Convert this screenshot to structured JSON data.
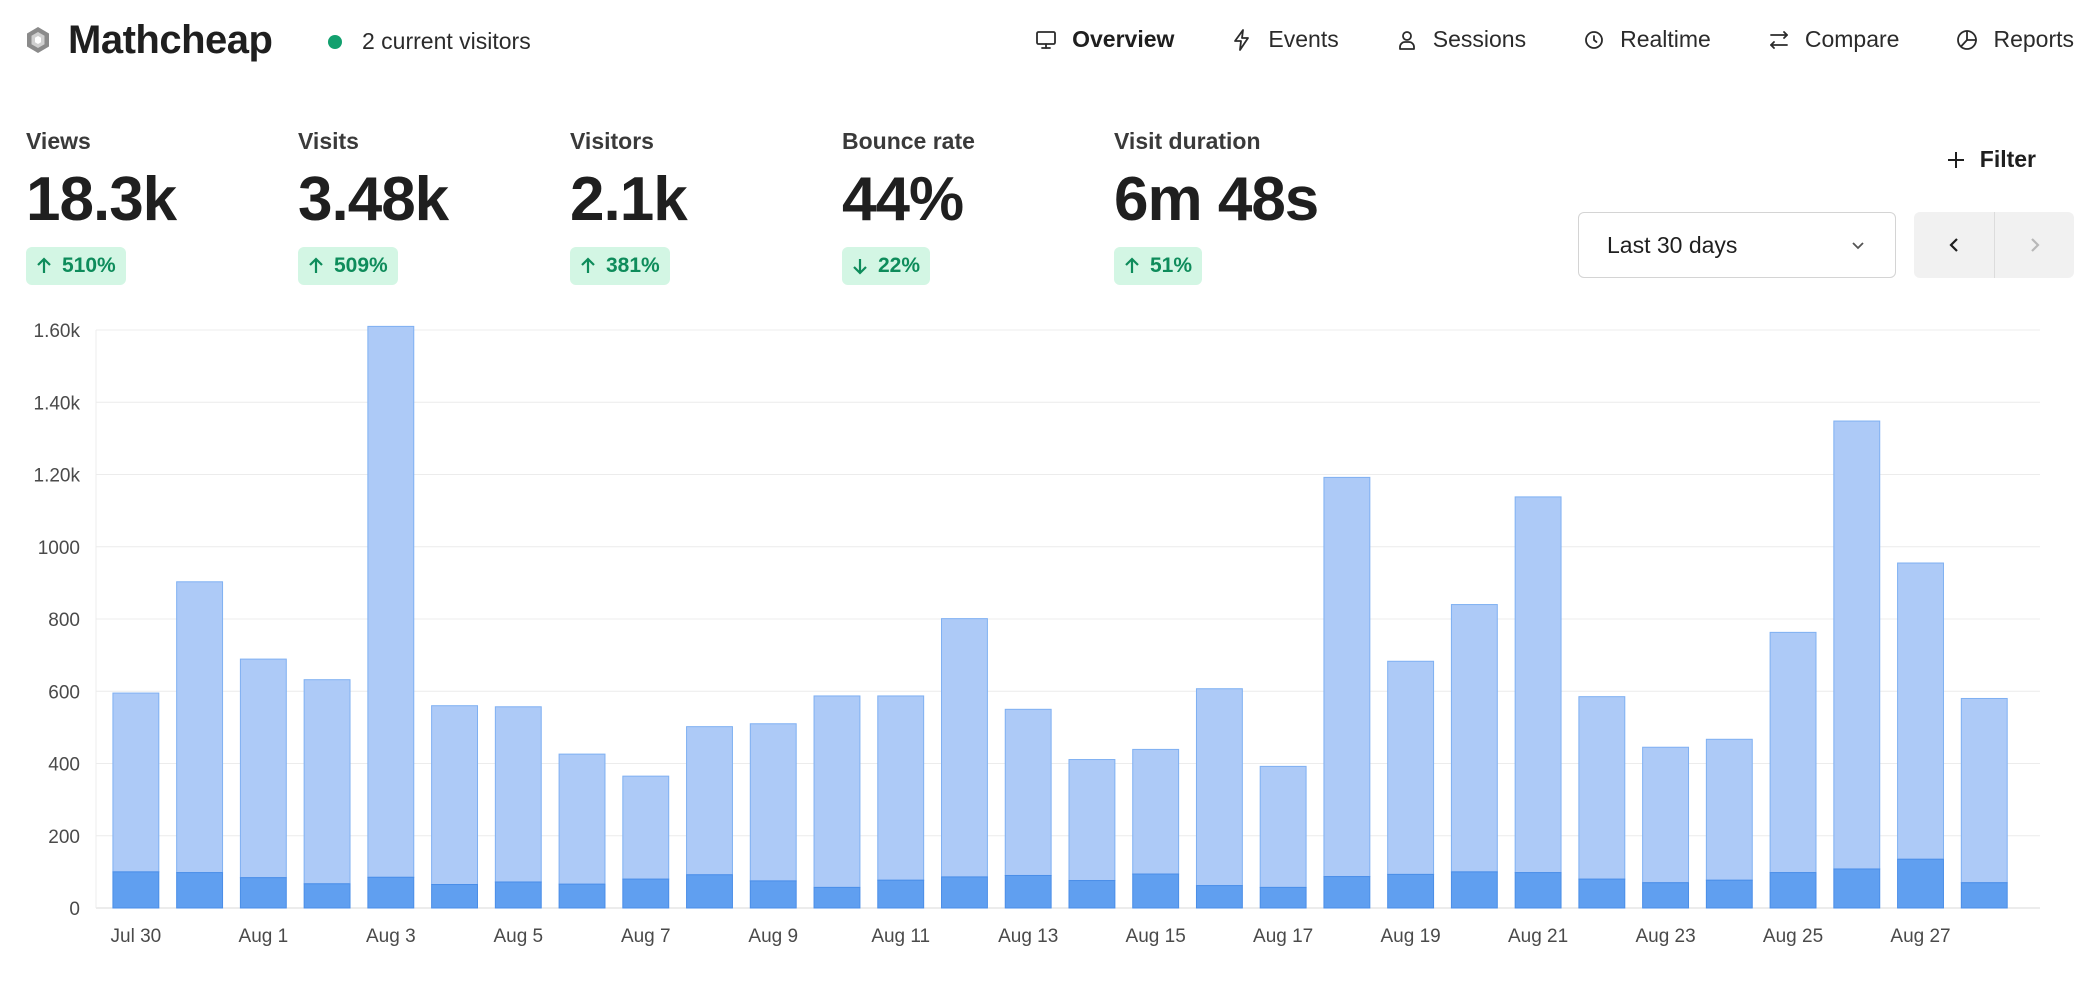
{
  "header": {
    "site_name": "Mathcheap",
    "live_visitors": "2 current visitors",
    "nav": [
      {
        "label": "Overview",
        "icon": "monitor-icon",
        "active": true
      },
      {
        "label": "Events",
        "icon": "lightning-icon",
        "active": false
      },
      {
        "label": "Sessions",
        "icon": "user-icon",
        "active": false
      },
      {
        "label": "Realtime",
        "icon": "clock-icon",
        "active": false
      },
      {
        "label": "Compare",
        "icon": "arrows-swap-icon",
        "active": false
      },
      {
        "label": "Reports",
        "icon": "pie-chart-icon",
        "active": false
      }
    ]
  },
  "metrics": [
    {
      "label": "Views",
      "value": "18.3k",
      "change": "510%",
      "direction": "up"
    },
    {
      "label": "Visits",
      "value": "3.48k",
      "change": "509%",
      "direction": "up"
    },
    {
      "label": "Visitors",
      "value": "2.1k",
      "change": "381%",
      "direction": "up"
    },
    {
      "label": "Bounce rate",
      "value": "44%",
      "change": "22%",
      "direction": "down"
    },
    {
      "label": "Visit duration",
      "value": "6m 48s",
      "change": "51%",
      "direction": "up"
    }
  ],
  "controls": {
    "filter_label": "Filter",
    "date_range": "Last 30 days"
  },
  "colors": {
    "accent_green": "#12a06e",
    "badge_bg": "#d3f6e4",
    "views_bar": "#adcaf7",
    "visitors_bar": "#609ff0"
  },
  "chart_data": {
    "type": "bar",
    "stacked": true,
    "ylim": [
      0,
      1600
    ],
    "y_ticks": [
      "0",
      "200",
      "400",
      "600",
      "800",
      "1000",
      "1.20k",
      "1.40k",
      "1.60k"
    ],
    "x_tick_labels": [
      "Jul 30",
      "Aug 1",
      "Aug 3",
      "Aug 5",
      "Aug 7",
      "Aug 9",
      "Aug 11",
      "Aug 13",
      "Aug 15",
      "Aug 17",
      "Aug 19",
      "Aug 21",
      "Aug 23",
      "Aug 25",
      "Aug 27"
    ],
    "categories": [
      "Jul 30",
      "Jul 31",
      "Aug 1",
      "Aug 2",
      "Aug 3",
      "Aug 4",
      "Aug 5",
      "Aug 6",
      "Aug 7",
      "Aug 8",
      "Aug 9",
      "Aug 10",
      "Aug 11",
      "Aug 12",
      "Aug 13",
      "Aug 14",
      "Aug 15",
      "Aug 16",
      "Aug 17",
      "Aug 18",
      "Aug 19",
      "Aug 20",
      "Aug 21",
      "Aug 22",
      "Aug 23",
      "Aug 24",
      "Aug 25",
      "Aug 26",
      "Aug 27",
      "Aug 28"
    ],
    "grid": true,
    "series": [
      {
        "values": [
          100,
          98,
          84,
          67,
          85,
          65,
          72,
          66,
          80,
          92,
          75,
          57,
          77,
          86,
          90,
          76,
          94,
          62,
          57,
          87,
          93,
          100,
          98,
          80,
          70,
          77,
          98,
          108,
          135,
          70
        ]
      },
      {
        "values": [
          495,
          805,
          605,
          565,
          1525,
          495,
          485,
          360,
          285,
          410,
          435,
          530,
          510,
          715,
          460,
          335,
          345,
          545,
          335,
          1105,
          590,
          740,
          1040,
          505,
          375,
          390,
          665,
          1240,
          820,
          510
        ]
      }
    ]
  }
}
